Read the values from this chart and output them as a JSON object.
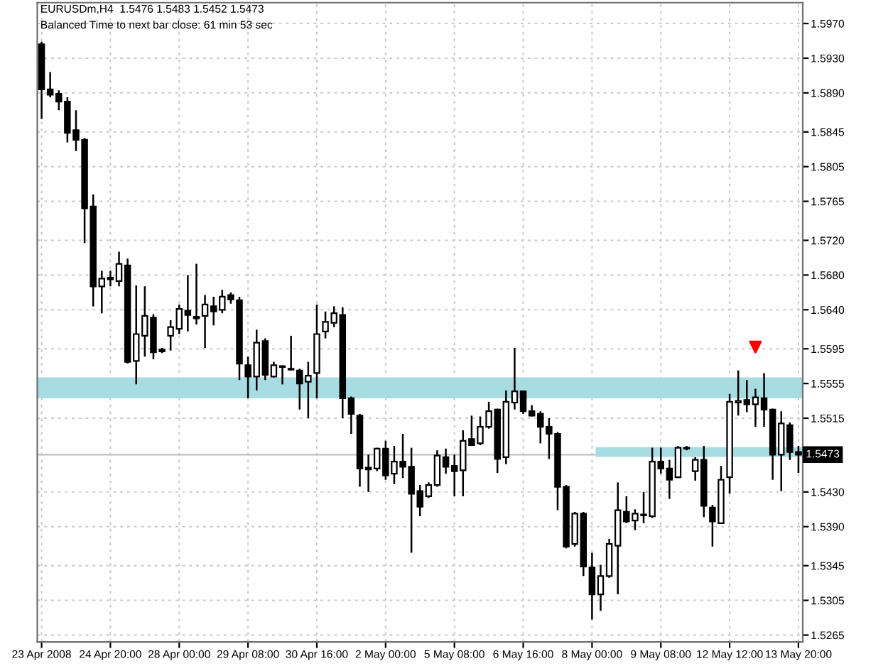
{
  "chart_data": {
    "type": "candlestick",
    "title": "EURUSDm,H4  1.5476 1.5483 1.5452 1.5473",
    "subtitle": "Balanced Time to next bar close: 61 min 53 sec",
    "categories": [
      "23 Apr 2008",
      null,
      null,
      null,
      null,
      null,
      null,
      null,
      "24 Apr 20:00",
      null,
      null,
      null,
      null,
      null,
      null,
      null,
      "28 Apr 00:00",
      null,
      null,
      null,
      null,
      null,
      null,
      null,
      "29 Apr 08:00",
      null,
      null,
      null,
      null,
      null,
      null,
      null,
      "30 Apr 16:00",
      null,
      null,
      null,
      null,
      null,
      null,
      null,
      "2 May 00:00",
      null,
      null,
      null,
      null,
      null,
      null,
      null,
      "5 May 08:00",
      null,
      null,
      null,
      null,
      null,
      null,
      null,
      "6 May 16:00",
      null,
      null,
      null,
      null,
      null,
      null,
      null,
      "8 May 00:00",
      null,
      null,
      null,
      null,
      null,
      null,
      null,
      "9 May 08:00",
      null,
      null,
      null,
      null,
      null,
      null,
      null,
      "12 May 12:00",
      null,
      null,
      null,
      null,
      null,
      null,
      null,
      "13 May 20:00"
    ],
    "ohlc": [
      [
        1.5946,
        1.5949,
        1.586,
        1.5894
      ],
      [
        1.5894,
        1.5914,
        1.5885,
        1.5888
      ],
      [
        1.5889,
        1.5893,
        1.587,
        1.588
      ],
      [
        1.588,
        1.5885,
        1.5833,
        1.5844
      ],
      [
        1.5847,
        1.587,
        1.5823,
        1.5836
      ],
      [
        1.5836,
        1.5838,
        1.5717,
        1.5757
      ],
      [
        1.5759,
        1.5773,
        1.5644,
        1.5667
      ],
      [
        1.5667,
        1.5685,
        1.5636,
        1.5676
      ],
      [
        1.5677,
        1.5685,
        1.5667,
        1.5675
      ],
      [
        1.5673,
        1.5707,
        1.5667,
        1.5693
      ],
      [
        1.5691,
        1.5699,
        1.5578,
        1.558
      ],
      [
        1.5581,
        1.5668,
        1.5554,
        1.5612
      ],
      [
        1.561,
        1.5667,
        1.5586,
        1.5633
      ],
      [
        1.5631,
        1.5635,
        1.5583,
        1.5591
      ],
      [
        1.5594,
        1.5596,
        1.559,
        1.5592
      ],
      [
        1.561,
        1.5628,
        1.5593,
        1.562
      ],
      [
        1.5618,
        1.5646,
        1.5612,
        1.5641
      ],
      [
        1.5639,
        1.568,
        1.5615,
        1.5634
      ],
      [
        1.5632,
        1.5693,
        1.5623,
        1.563
      ],
      [
        1.5633,
        1.5657,
        1.5596,
        1.5646
      ],
      [
        1.5644,
        1.5655,
        1.5622,
        1.5638
      ],
      [
        1.564,
        1.5663,
        1.5636,
        1.5655
      ],
      [
        1.5657,
        1.566,
        1.5647,
        1.5652
      ],
      [
        1.5651,
        1.5655,
        1.5559,
        1.5578
      ],
      [
        1.5576,
        1.5586,
        1.5538,
        1.5563
      ],
      [
        1.5563,
        1.5617,
        1.5547,
        1.5602
      ],
      [
        1.5604,
        1.5607,
        1.5559,
        1.5565
      ],
      [
        1.5563,
        1.558,
        1.5562,
        1.5576
      ],
      [
        1.5575,
        1.5576,
        1.5554,
        1.5574
      ],
      [
        1.5572,
        1.561,
        1.557,
        1.5571
      ],
      [
        1.557,
        1.5572,
        1.5525,
        1.5555
      ],
      [
        1.5557,
        1.558,
        1.5515,
        1.5564
      ],
      [
        1.5567,
        1.5646,
        1.5538,
        1.5612
      ],
      [
        1.5615,
        1.5638,
        1.5607,
        1.5626
      ],
      [
        1.5625,
        1.5644,
        1.562,
        1.5636
      ],
      [
        1.5634,
        1.5643,
        1.5515,
        1.5538
      ],
      [
        1.5538,
        1.554,
        1.5497,
        1.552
      ],
      [
        1.5518,
        1.552,
        1.5436,
        1.5457
      ],
      [
        1.5458,
        1.5473,
        1.543,
        1.5456
      ],
      [
        1.5457,
        1.5481,
        1.5454,
        1.548
      ],
      [
        1.548,
        1.5489,
        1.5444,
        1.5449
      ],
      [
        1.5451,
        1.5483,
        1.5439,
        1.5465
      ],
      [
        1.5465,
        1.5497,
        1.5446,
        1.5459
      ],
      [
        1.5459,
        1.5481,
        1.536,
        1.5428
      ],
      [
        1.5431,
        1.5438,
        1.5402,
        1.5413
      ],
      [
        1.5425,
        1.5441,
        1.5423,
        1.5438
      ],
      [
        1.5438,
        1.5478,
        1.5436,
        1.5472
      ],
      [
        1.547,
        1.548,
        1.5451,
        1.5459
      ],
      [
        1.546,
        1.5473,
        1.5425,
        1.5454
      ],
      [
        1.5455,
        1.5501,
        1.5425,
        1.5489
      ],
      [
        1.5491,
        1.5518,
        1.5483,
        1.5484
      ],
      [
        1.5486,
        1.5517,
        1.5484,
        1.5505
      ],
      [
        1.5505,
        1.5534,
        1.5503,
        1.5523
      ],
      [
        1.5525,
        1.5526,
        1.5452,
        1.5468
      ],
      [
        1.547,
        1.5547,
        1.5462,
        1.5534
      ],
      [
        1.5533,
        1.5596,
        1.5525,
        1.5546
      ],
      [
        1.5546,
        1.5547,
        1.552,
        1.5523
      ],
      [
        1.5523,
        1.553,
        1.5517,
        1.5518
      ],
      [
        1.552,
        1.5523,
        1.5486,
        1.5505
      ],
      [
        1.5505,
        1.5515,
        1.5468,
        1.5497
      ],
      [
        1.5497,
        1.5499,
        1.5409,
        1.5436
      ],
      [
        1.5436,
        1.5438,
        1.5365,
        1.5367
      ],
      [
        1.537,
        1.5407,
        1.5367,
        1.5405
      ],
      [
        1.5405,
        1.5407,
        1.5333,
        1.5344
      ],
      [
        1.5343,
        1.536,
        1.5283,
        1.5312
      ],
      [
        1.5312,
        1.5346,
        1.5293,
        1.5333
      ],
      [
        1.5333,
        1.5376,
        1.5331,
        1.537
      ],
      [
        1.5368,
        1.5441,
        1.5312,
        1.5409
      ],
      [
        1.5407,
        1.5425,
        1.5394,
        1.5396
      ],
      [
        1.5397,
        1.541,
        1.5386,
        1.5405
      ],
      [
        1.5404,
        1.543,
        1.5394,
        1.5403
      ],
      [
        1.5402,
        1.5481,
        1.54,
        1.5465
      ],
      [
        1.5465,
        1.5481,
        1.5451,
        1.5457
      ],
      [
        1.5457,
        1.5467,
        1.5422,
        1.5444
      ],
      [
        1.5447,
        1.5483,
        1.5446,
        1.5481
      ],
      [
        1.548,
        1.5483,
        1.5478,
        1.5481
      ],
      [
        1.5454,
        1.547,
        1.5443,
        1.5467
      ],
      [
        1.5467,
        1.5483,
        1.5401,
        1.5414
      ],
      [
        1.5412,
        1.5415,
        1.5367,
        1.5396
      ],
      [
        1.5394,
        1.546,
        1.5394,
        1.5444
      ],
      [
        1.5447,
        1.5543,
        1.5428,
        1.5534
      ],
      [
        1.5533,
        1.557,
        1.5518,
        1.5535
      ],
      [
        1.5536,
        1.5559,
        1.5522,
        1.5531
      ],
      [
        1.5531,
        1.5549,
        1.5505,
        1.5539
      ],
      [
        1.5538,
        1.5567,
        1.5505,
        1.5525
      ],
      [
        1.5525,
        1.5526,
        1.5444,
        1.5473
      ],
      [
        1.5473,
        1.5523,
        1.5431,
        1.5509
      ],
      [
        1.5507,
        1.551,
        1.5467,
        1.5476
      ],
      [
        1.5476,
        1.5483,
        1.5452,
        1.5473
      ]
    ],
    "series": [
      {
        "type": "line",
        "color": "#a8dce3",
        "values": [
          null,
          null,
          null,
          null,
          null,
          null,
          null,
          null,
          null,
          null,
          null,
          null,
          null,
          null,
          null,
          null,
          null,
          null,
          null,
          null,
          null,
          null,
          null,
          null,
          null,
          null,
          null,
          null,
          null,
          null,
          null,
          null,
          null,
          null,
          null,
          null,
          null,
          null,
          null,
          null,
          null,
          null,
          null,
          null,
          null,
          null,
          null,
          null,
          null,
          null,
          null,
          null,
          null,
          null,
          null,
          null,
          null,
          null,
          null,
          null,
          null,
          null,
          null,
          null,
          null,
          1.5476,
          1.5476,
          1.5476,
          1.5476,
          1.5476,
          1.5476,
          1.5476,
          1.5476,
          1.5476,
          1.5476,
          1.5476,
          1.5476,
          1.5476,
          1.5476,
          1.5476,
          1.5476,
          1.5476,
          1.5476,
          1.5476,
          1.5476,
          1.5476,
          1.5476,
          1.5476,
          1.5476
        ]
      },
      {
        "type": "scatter",
        "color": "#ff0000",
        "marker": "triangle",
        "values": [
          null,
          null,
          null,
          null,
          null,
          null,
          null,
          null,
          null,
          null,
          null,
          null,
          null,
          null,
          null,
          null,
          null,
          null,
          null,
          null,
          null,
          null,
          null,
          null,
          null,
          null,
          null,
          null,
          null,
          null,
          null,
          null,
          null,
          null,
          null,
          null,
          null,
          null,
          null,
          null,
          null,
          null,
          null,
          null,
          null,
          null,
          null,
          null,
          null,
          null,
          null,
          null,
          null,
          null,
          null,
          null,
          null,
          null,
          null,
          null,
          null,
          null,
          null,
          null,
          null,
          null,
          null,
          null,
          null,
          null,
          null,
          null,
          null,
          null,
          null,
          null,
          null,
          null,
          null,
          null,
          null,
          null,
          null,
          1.5597,
          null,
          null,
          null,
          null,
          null
        ]
      }
    ],
    "bands": [
      {
        "axis": "y",
        "from": 1.5538,
        "to": 1.5562,
        "color": "#a8dce3"
      }
    ],
    "ref_lines": [
      {
        "axis": "y",
        "value": 1.5473,
        "label": "1.5473",
        "color": "#c0c0c0"
      }
    ],
    "ylim": [
      1.5257,
      1.5994
    ],
    "yticks": [
      1.5265,
      1.5305,
      1.5345,
      {
        "value": 1.539,
        "label": "1.5390"
      },
      {
        "value": 1.543,
        "label": "1.5430"
      },
      1.5515,
      1.5555,
      1.5595,
      {
        "value": 1.564,
        "label": "1.5640"
      },
      {
        "value": 1.568,
        "label": "1.5680"
      },
      {
        "value": 1.572,
        "label": "1.5720"
      },
      1.5765,
      1.5805,
      1.5845,
      {
        "value": 1.589,
        "label": "1.5890"
      },
      {
        "value": 1.593,
        "label": "1.5930"
      },
      {
        "value": 1.597,
        "label": "1.5970"
      }
    ],
    "grid": true
  }
}
